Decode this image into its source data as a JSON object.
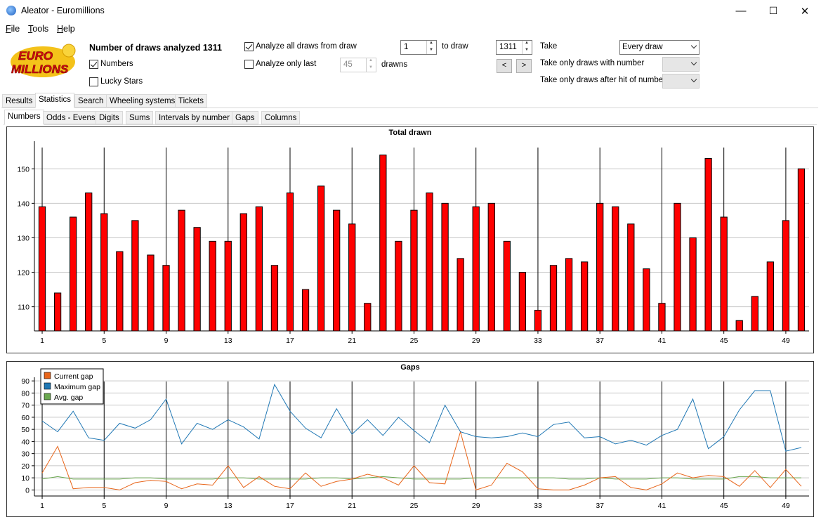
{
  "window": {
    "title": "Aleator - Euromillions",
    "minimize": "—",
    "maximize": "☐",
    "close": "✕"
  },
  "menu": {
    "file": "File",
    "file_u": "F",
    "file_rest": "ile",
    "tools": "Tools",
    "tools_u": "T",
    "tools_rest": "ools",
    "help": "Help",
    "help_u": "H",
    "help_rest": "elp"
  },
  "logo": {
    "line1": "EURO",
    "line2": "MILLIONS"
  },
  "panel": {
    "draws_analyzed": "Number of draws analyzed 1311",
    "numbers_label": "Numbers",
    "numbers_checked": true,
    "lucky_label": "Lucky Stars",
    "lucky_checked": false,
    "analyze_all_label": "Analyze all draws from draw",
    "analyze_all_checked": true,
    "from_draw": "1",
    "to_draw_label": "to draw",
    "to_draw": "1311",
    "analyze_last_label": "Analyze only last",
    "analyze_last_checked": false,
    "last_value": "45",
    "drawns_label": "drawns",
    "prev_btn": "<",
    "next_btn": ">",
    "take_label": "Take",
    "take_value": "Every draw",
    "take_with_label": "Take only draws with number",
    "take_after_label": "Take only draws after hit of number"
  },
  "tabs": [
    "Results",
    "Statistics",
    "Search",
    "Wheeling systems",
    "Tickets"
  ],
  "active_tab": "Statistics",
  "subtabs": [
    "Numbers",
    "Odds - Evens",
    "Digits",
    "Sums",
    "Intervals by number",
    "Gaps",
    "Columns"
  ],
  "active_subtab": "Numbers",
  "colors": {
    "bar": "#ff0000",
    "current_gap": "#e8651a",
    "max_gap": "#1f77b4",
    "avg_gap": "#6aa84f"
  },
  "chart_data": [
    {
      "type": "bar",
      "title": "Total drawn",
      "x": [
        1,
        2,
        3,
        4,
        5,
        6,
        7,
        8,
        9,
        10,
        11,
        12,
        13,
        14,
        15,
        16,
        17,
        18,
        19,
        20,
        21,
        22,
        23,
        24,
        25,
        26,
        27,
        28,
        29,
        30,
        31,
        32,
        33,
        34,
        35,
        36,
        37,
        38,
        39,
        40,
        41,
        42,
        43,
        44,
        45,
        46,
        47,
        48,
        49,
        50
      ],
      "values": [
        139,
        114,
        136,
        143,
        137,
        126,
        135,
        125,
        122,
        138,
        133,
        129,
        129,
        137,
        139,
        122,
        143,
        115,
        145,
        138,
        134,
        111,
        154,
        129,
        138,
        143,
        140,
        124,
        139,
        140,
        129,
        120,
        109,
        122,
        124,
        123,
        140,
        139,
        134,
        121,
        111,
        140,
        130,
        153,
        136,
        106,
        113,
        123,
        135,
        150
      ],
      "x_ticks": [
        1,
        5,
        9,
        13,
        17,
        21,
        25,
        29,
        33,
        37,
        41,
        45,
        49
      ],
      "y_ticks": [
        110,
        120,
        130,
        140,
        150
      ],
      "ylim": [
        103,
        158
      ],
      "grid": "horizontal"
    },
    {
      "type": "line",
      "title": "Gaps",
      "x": [
        1,
        2,
        3,
        4,
        5,
        6,
        7,
        8,
        9,
        10,
        11,
        12,
        13,
        14,
        15,
        16,
        17,
        18,
        19,
        20,
        21,
        22,
        23,
        24,
        25,
        26,
        27,
        28,
        29,
        30,
        31,
        32,
        33,
        34,
        35,
        36,
        37,
        38,
        39,
        40,
        41,
        42,
        43,
        44,
        45,
        46,
        47,
        48,
        49,
        50
      ],
      "x_ticks": [
        1,
        5,
        9,
        13,
        17,
        21,
        25,
        29,
        33,
        37,
        41,
        45,
        49
      ],
      "y_ticks": [
        0,
        10,
        20,
        30,
        40,
        50,
        60,
        70,
        80,
        90
      ],
      "ylim": [
        -5,
        93
      ],
      "legend": "top-left",
      "series": [
        {
          "name": "Current gap",
          "values": [
            14,
            36,
            1,
            2,
            2,
            0,
            6,
            8,
            7,
            1,
            5,
            4,
            20,
            2,
            11,
            3,
            1,
            14,
            3,
            7,
            9,
            13,
            10,
            4,
            20,
            6,
            5,
            48,
            0,
            4,
            22,
            15,
            1,
            0,
            0,
            4,
            10,
            11,
            2,
            0,
            5,
            14,
            10,
            12,
            11,
            3,
            16,
            2,
            17,
            3
          ]
        },
        {
          "name": "Maximum gap",
          "values": [
            57,
            48,
            65,
            43,
            41,
            55,
            51,
            58,
            75,
            38,
            55,
            50,
            58,
            52,
            42,
            87,
            65,
            51,
            43,
            67,
            46,
            58,
            45,
            60,
            49,
            39,
            70,
            48,
            44,
            43,
            44,
            47,
            44,
            54,
            56,
            43,
            44,
            38,
            41,
            37,
            45,
            50,
            75,
            34,
            44,
            66,
            82,
            82,
            32,
            35
          ]
        },
        {
          "name": "Avg. gap",
          "values": [
            9,
            11,
            9,
            9,
            9,
            9,
            10,
            10,
            9,
            9,
            9,
            9,
            10,
            10,
            9,
            9,
            9,
            9,
            10,
            10,
            9,
            10,
            11,
            10,
            9,
            9,
            9,
            9,
            10,
            10,
            10,
            10,
            10,
            10,
            9,
            9,
            10,
            9,
            9,
            9,
            10,
            10,
            9,
            9,
            9,
            11,
            11,
            10,
            10,
            10
          ]
        }
      ]
    }
  ]
}
